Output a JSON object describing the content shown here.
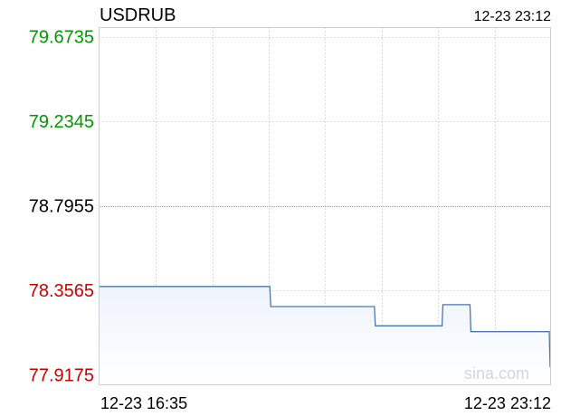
{
  "chart_data": {
    "type": "line",
    "title": "USDRUB",
    "timestamp": "12-23 23:12",
    "watermark": "sina.com",
    "x_start_label": "12-23 16:35",
    "x_end_label": "12-23 23:12",
    "y_ticks": [
      {
        "label": "79.6735",
        "value": 79.6735,
        "color": "#009900"
      },
      {
        "label": "79.2345",
        "value": 79.2345,
        "color": "#009900"
      },
      {
        "label": "78.7955",
        "value": 78.7955,
        "color": "#000000"
      },
      {
        "label": "78.3565",
        "value": 78.3565,
        "color": "#cc0000"
      },
      {
        "label": "77.9175",
        "value": 77.9175,
        "color": "#cc0000"
      }
    ],
    "ylim": [
      77.9175,
      79.6735
    ],
    "reference_value": 78.7955,
    "grid": true,
    "line_color": "#4a77b4",
    "fill_color": "#eef4fc",
    "x": [
      0,
      190,
      191,
      306,
      307,
      381,
      382,
      412,
      413,
      500,
      501
    ],
    "values": [
      78.376,
      78.376,
      78.272,
      78.272,
      78.172,
      78.172,
      78.282,
      78.282,
      78.142,
      78.142,
      77.957
    ],
    "x_max": 501
  }
}
